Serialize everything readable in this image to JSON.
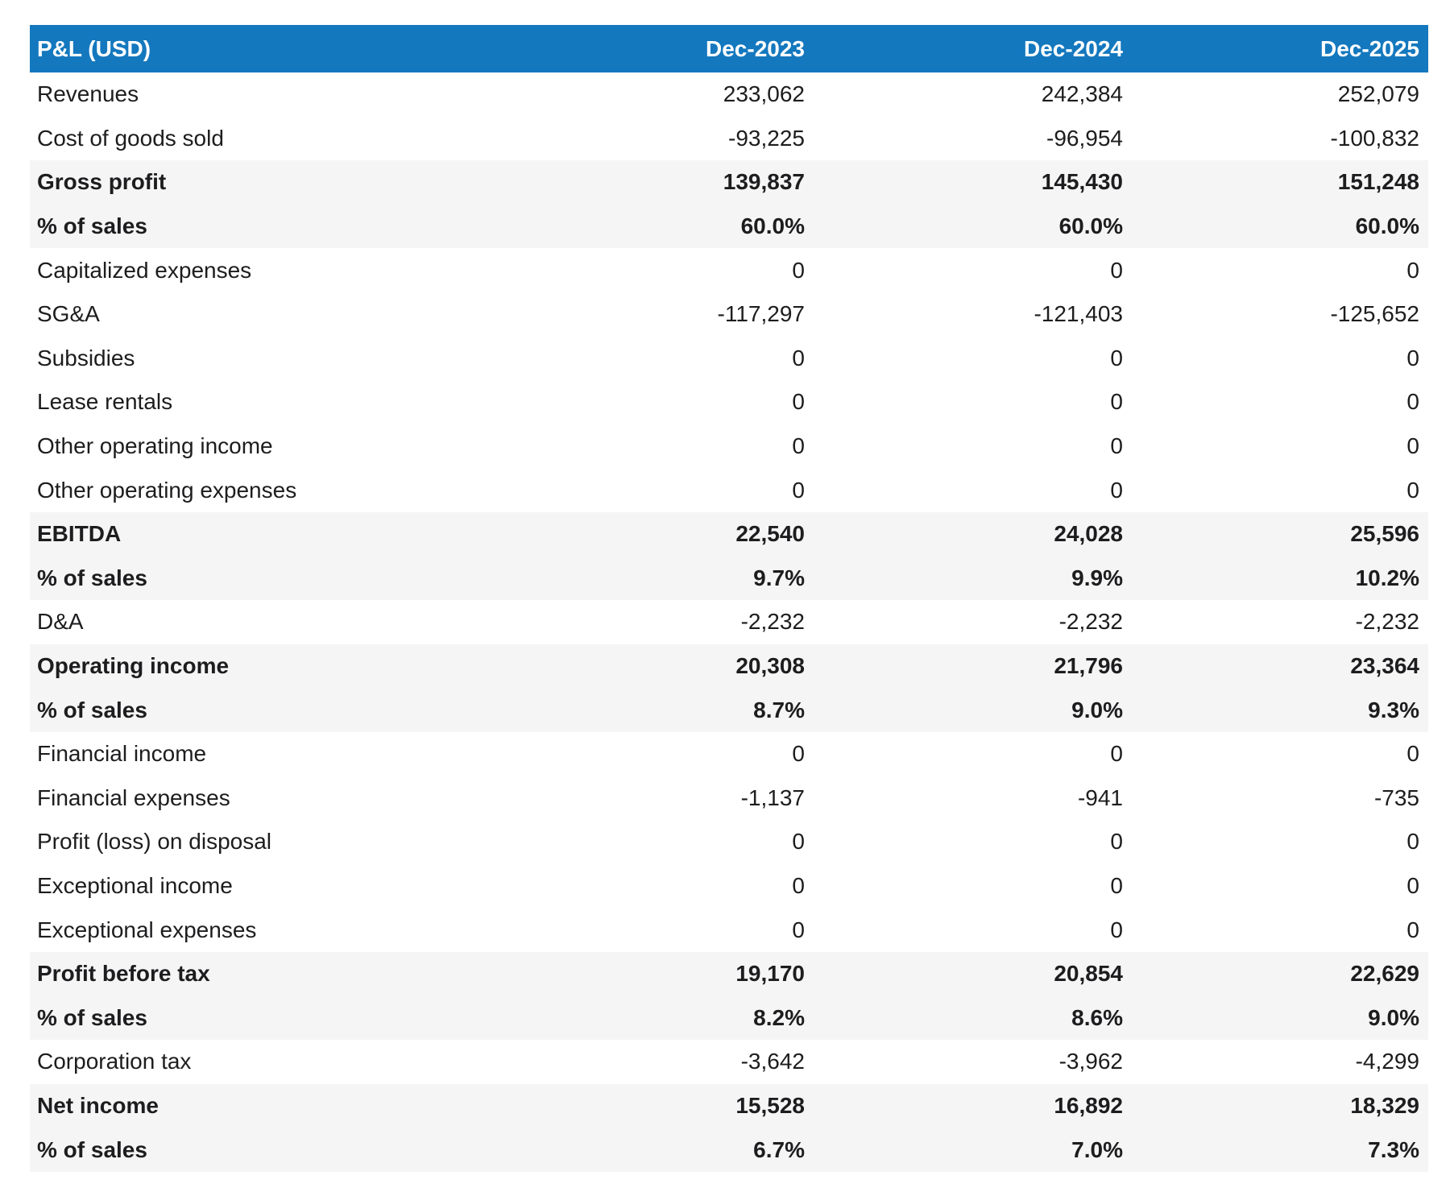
{
  "colors": {
    "header_bg": "#1478be",
    "header_text": "#ffffff",
    "summary_row_bg": "#f5f5f5",
    "body_text": "#1d1d1f",
    "page_bg": "#ffffff"
  },
  "table": {
    "header": {
      "label": "P&L (USD)",
      "columns": [
        "Dec-2023",
        "Dec-2024",
        "Dec-2025"
      ]
    },
    "rows": [
      {
        "label": "Revenues",
        "values": [
          "233,062",
          "242,384",
          "252,079"
        ],
        "bold": false
      },
      {
        "label": "Cost of goods sold",
        "values": [
          "-93,225",
          "-96,954",
          "-100,832"
        ],
        "bold": false
      },
      {
        "label": "Gross profit",
        "values": [
          "139,837",
          "145,430",
          "151,248"
        ],
        "bold": true
      },
      {
        "label": "% of sales",
        "values": [
          "60.0%",
          "60.0%",
          "60.0%"
        ],
        "bold": true
      },
      {
        "label": "Capitalized expenses",
        "values": [
          "0",
          "0",
          "0"
        ],
        "bold": false
      },
      {
        "label": "SG&A",
        "values": [
          "-117,297",
          "-121,403",
          "-125,652"
        ],
        "bold": false
      },
      {
        "label": "Subsidies",
        "values": [
          "0",
          "0",
          "0"
        ],
        "bold": false
      },
      {
        "label": "Lease rentals",
        "values": [
          "0",
          "0",
          "0"
        ],
        "bold": false
      },
      {
        "label": "Other operating income",
        "values": [
          "0",
          "0",
          "0"
        ],
        "bold": false
      },
      {
        "label": "Other operating expenses",
        "values": [
          "0",
          "0",
          "0"
        ],
        "bold": false
      },
      {
        "label": "EBITDA",
        "values": [
          "22,540",
          "24,028",
          "25,596"
        ],
        "bold": true
      },
      {
        "label": "% of sales",
        "values": [
          "9.7%",
          "9.9%",
          "10.2%"
        ],
        "bold": true
      },
      {
        "label": "D&A",
        "values": [
          "-2,232",
          "-2,232",
          "-2,232"
        ],
        "bold": false
      },
      {
        "label": "Operating income",
        "values": [
          "20,308",
          "21,796",
          "23,364"
        ],
        "bold": true
      },
      {
        "label": "% of sales",
        "values": [
          "8.7%",
          "9.0%",
          "9.3%"
        ],
        "bold": true
      },
      {
        "label": "Financial income",
        "values": [
          "0",
          "0",
          "0"
        ],
        "bold": false
      },
      {
        "label": "Financial expenses",
        "values": [
          "-1,137",
          "-941",
          "-735"
        ],
        "bold": false
      },
      {
        "label": "Profit (loss) on disposal",
        "values": [
          "0",
          "0",
          "0"
        ],
        "bold": false
      },
      {
        "label": "Exceptional income",
        "values": [
          "0",
          "0",
          "0"
        ],
        "bold": false
      },
      {
        "label": "Exceptional expenses",
        "values": [
          "0",
          "0",
          "0"
        ],
        "bold": false
      },
      {
        "label": "Profit before tax",
        "values": [
          "19,170",
          "20,854",
          "22,629"
        ],
        "bold": true
      },
      {
        "label": "% of sales",
        "values": [
          "8.2%",
          "8.6%",
          "9.0%"
        ],
        "bold": true
      },
      {
        "label": "Corporation tax",
        "values": [
          "-3,642",
          "-3,962",
          "-4,299"
        ],
        "bold": false
      },
      {
        "label": "Net income",
        "values": [
          "15,528",
          "16,892",
          "18,329"
        ],
        "bold": true
      },
      {
        "label": "% of sales",
        "values": [
          "6.7%",
          "7.0%",
          "7.3%"
        ],
        "bold": true
      }
    ]
  },
  "chart_data": {
    "type": "table",
    "title": "P&L (USD)",
    "columns": [
      "Dec-2023",
      "Dec-2024",
      "Dec-2025"
    ],
    "rows": [
      {
        "label": "Revenues",
        "values": [
          233062,
          242384,
          252079
        ]
      },
      {
        "label": "Cost of goods sold",
        "values": [
          -93225,
          -96954,
          -100832
        ]
      },
      {
        "label": "Gross profit",
        "values": [
          139837,
          145430,
          151248
        ]
      },
      {
        "label": "Gross profit % of sales",
        "values": [
          "60.0%",
          "60.0%",
          "60.0%"
        ]
      },
      {
        "label": "Capitalized expenses",
        "values": [
          0,
          0,
          0
        ]
      },
      {
        "label": "SG&A",
        "values": [
          -117297,
          -121403,
          -125652
        ]
      },
      {
        "label": "Subsidies",
        "values": [
          0,
          0,
          0
        ]
      },
      {
        "label": "Lease rentals",
        "values": [
          0,
          0,
          0
        ]
      },
      {
        "label": "Other operating income",
        "values": [
          0,
          0,
          0
        ]
      },
      {
        "label": "Other operating expenses",
        "values": [
          0,
          0,
          0
        ]
      },
      {
        "label": "EBITDA",
        "values": [
          22540,
          24028,
          25596
        ]
      },
      {
        "label": "EBITDA % of sales",
        "values": [
          "9.7%",
          "9.9%",
          "10.2%"
        ]
      },
      {
        "label": "D&A",
        "values": [
          -2232,
          -2232,
          -2232
        ]
      },
      {
        "label": "Operating income",
        "values": [
          20308,
          21796,
          23364
        ]
      },
      {
        "label": "Operating income % of sales",
        "values": [
          "8.7%",
          "9.0%",
          "9.3%"
        ]
      },
      {
        "label": "Financial income",
        "values": [
          0,
          0,
          0
        ]
      },
      {
        "label": "Financial expenses",
        "values": [
          -1137,
          -941,
          -735
        ]
      },
      {
        "label": "Profit (loss) on disposal",
        "values": [
          0,
          0,
          0
        ]
      },
      {
        "label": "Exceptional income",
        "values": [
          0,
          0,
          0
        ]
      },
      {
        "label": "Exceptional expenses",
        "values": [
          0,
          0,
          0
        ]
      },
      {
        "label": "Profit before tax",
        "values": [
          19170,
          20854,
          22629
        ]
      },
      {
        "label": "Profit before tax % of sales",
        "values": [
          "8.2%",
          "8.6%",
          "9.0%"
        ]
      },
      {
        "label": "Corporation tax",
        "values": [
          -3642,
          -3962,
          -4299
        ]
      },
      {
        "label": "Net income",
        "values": [
          15528,
          16892,
          18329
        ]
      },
      {
        "label": "Net income % of sales",
        "values": [
          "6.7%",
          "7.0%",
          "7.3%"
        ]
      }
    ]
  }
}
